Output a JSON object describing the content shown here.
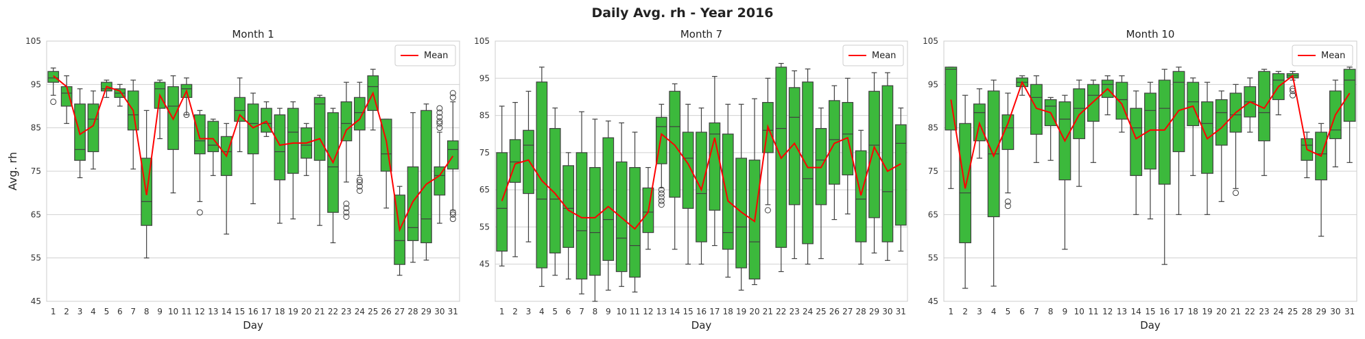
{
  "figure": {
    "title": "Daily Avg. rh - Year 2016"
  },
  "chart_data": [
    {
      "type": "box",
      "title": "Month 1",
      "xlabel": "Day",
      "ylabel": "Avg. rh",
      "ylim": [
        45,
        105
      ],
      "yticks": [
        45,
        55,
        65,
        75,
        85,
        95,
        105
      ],
      "legend": {
        "label": "Mean",
        "placement": "top-right"
      },
      "grid": true,
      "box_color": "#3cb93c",
      "mean_color": "#ff0000",
      "categories": [
        "1",
        "2",
        "3",
        "4",
        "5",
        "6",
        "7",
        "8",
        "9",
        "10",
        "11",
        "12",
        "13",
        "14",
        "15",
        "16",
        "17",
        "18",
        "19",
        "20",
        "21",
        "22",
        "23",
        "24",
        "25",
        "26",
        "27",
        "28",
        "29",
        "30",
        "31"
      ],
      "boxes": [
        {
          "min": 92.5,
          "q1": 95.5,
          "median": 96.5,
          "q3": 98,
          "max": 98.8,
          "outliers": [
            91
          ]
        },
        {
          "min": 86,
          "q1": 90,
          "median": 93,
          "q3": 94.5,
          "max": 97,
          "outliers": []
        },
        {
          "min": 73.5,
          "q1": 77.5,
          "median": 80,
          "q3": 90.5,
          "max": 94,
          "outliers": []
        },
        {
          "min": 75.5,
          "q1": 79.5,
          "median": 87,
          "q3": 90.5,
          "max": 93.5,
          "outliers": []
        },
        {
          "min": 92,
          "q1": 93.5,
          "median": 94,
          "q3": 95.5,
          "max": 96,
          "outliers": []
        },
        {
          "min": 90,
          "q1": 92,
          "median": 93,
          "q3": 94,
          "max": 95,
          "outliers": []
        },
        {
          "min": 75.5,
          "q1": 84.5,
          "median": 88,
          "q3": 93.5,
          "max": 96,
          "outliers": []
        },
        {
          "min": 55,
          "q1": 62.5,
          "median": 68,
          "q3": 78,
          "max": 89,
          "outliers": []
        },
        {
          "min": 82.5,
          "q1": 89.5,
          "median": 94,
          "q3": 95.5,
          "max": 96,
          "outliers": []
        },
        {
          "min": 70,
          "q1": 80,
          "median": 90,
          "q3": 94.5,
          "max": 97,
          "outliers": []
        },
        {
          "min": 88,
          "q1": 92,
          "median": 94,
          "q3": 95,
          "max": 96.5,
          "outliers": [
            88
          ]
        },
        {
          "min": 68,
          "q1": 79,
          "median": 82,
          "q3": 88,
          "max": 89,
          "outliers": [
            65.5
          ]
        },
        {
          "min": 74,
          "q1": 79.5,
          "median": 81,
          "q3": 86.5,
          "max": 87,
          "outliers": []
        },
        {
          "min": 60.5,
          "q1": 74,
          "median": 79.5,
          "q3": 83,
          "max": 86,
          "outliers": []
        },
        {
          "min": 79.5,
          "q1": 86.5,
          "median": 89,
          "q3": 92,
          "max": 96.5,
          "outliers": []
        },
        {
          "min": 67.5,
          "q1": 79,
          "median": 86,
          "q3": 90.5,
          "max": 93,
          "outliers": []
        },
        {
          "min": 83,
          "q1": 84,
          "median": 86,
          "q3": 89.5,
          "max": 91,
          "outliers": []
        },
        {
          "min": 63,
          "q1": 73,
          "median": 79.5,
          "q3": 88,
          "max": 89.5,
          "outliers": []
        },
        {
          "min": 64,
          "q1": 74.5,
          "median": 84,
          "q3": 89.5,
          "max": 91,
          "outliers": []
        },
        {
          "min": 74,
          "q1": 78,
          "median": 81,
          "q3": 85,
          "max": 86,
          "outliers": []
        },
        {
          "min": 62.5,
          "q1": 77.5,
          "median": 90.5,
          "q3": 92,
          "max": 92.5,
          "outliers": []
        },
        {
          "min": 58.5,
          "q1": 65.5,
          "median": 76,
          "q3": 88.5,
          "max": 89.5,
          "outliers": []
        },
        {
          "min": 72.5,
          "q1": 82,
          "median": 86,
          "q3": 91,
          "max": 95.5,
          "outliers": [
            64.5,
            65.5,
            66.5,
            67.5
          ]
        },
        {
          "min": 74,
          "q1": 84.5,
          "median": 88.5,
          "q3": 92,
          "max": 95.5,
          "outliers": [
            70.5,
            71.5,
            72.5,
            73
          ]
        },
        {
          "min": 84.5,
          "q1": 89,
          "median": 94.5,
          "q3": 97,
          "max": 98.5,
          "outliers": []
        },
        {
          "min": 66.5,
          "q1": 75,
          "median": 79,
          "q3": 87,
          "max": 87,
          "outliers": []
        },
        {
          "min": 51,
          "q1": 53.5,
          "median": 59,
          "q3": 69.5,
          "max": 71.5,
          "outliers": []
        },
        {
          "min": 54,
          "q1": 59,
          "median": 62,
          "q3": 76,
          "max": 88.5,
          "outliers": []
        },
        {
          "min": 54.5,
          "q1": 58.5,
          "median": 64,
          "q3": 89,
          "max": 90.5,
          "outliers": []
        },
        {
          "min": 63,
          "q1": 69.5,
          "median": 74,
          "q3": 76,
          "max": 84,
          "outliers": [
            85,
            86,
            86.5,
            87.5,
            88.5,
            89.5
          ]
        },
        {
          "min": 66,
          "q1": 75.5,
          "median": 80,
          "q3": 82,
          "max": 91,
          "outliers": [
            64,
            65,
            65.5,
            92,
            93
          ]
        }
      ],
      "means": [
        97,
        94.5,
        83.5,
        85.5,
        94.5,
        93.5,
        89,
        69.5,
        92.5,
        87,
        93.5,
        82.5,
        82.5,
        78.5,
        88,
        85,
        86.5,
        81,
        81.5,
        81.5,
        82.5,
        77,
        84.5,
        87,
        93,
        82,
        61.5,
        68,
        72,
        74,
        78.5
      ]
    },
    {
      "type": "box",
      "title": "Month 7",
      "xlabel": "Day",
      "ylabel": "",
      "ylim": [
        35,
        105
      ],
      "yticks": [
        45,
        55,
        65,
        75,
        85,
        95,
        105
      ],
      "legend": {
        "label": "Mean",
        "placement": "top-right"
      },
      "grid": true,
      "box_color": "#3cb93c",
      "mean_color": "#ff0000",
      "categories": [
        "1",
        "2",
        "3",
        "4",
        "5",
        "6",
        "7",
        "8",
        "9",
        "10",
        "11",
        "12",
        "13",
        "14",
        "15",
        "16",
        "17",
        "18",
        "19",
        "20",
        "21",
        "22",
        "23",
        "24",
        "25",
        "26",
        "27",
        "28",
        "29",
        "30",
        "31"
      ],
      "boxes": [
        {
          "min": 44.5,
          "q1": 48.5,
          "median": 60,
          "q3": 75,
          "max": 87.5,
          "outliers": []
        },
        {
          "min": 47,
          "q1": 67,
          "median": 72.5,
          "q3": 78.5,
          "max": 88.5,
          "outliers": []
        },
        {
          "min": 51,
          "q1": 64,
          "median": 77,
          "q3": 81,
          "max": 91.5,
          "outliers": []
        },
        {
          "min": 39,
          "q1": 44,
          "median": 62.5,
          "q3": 94,
          "max": 98,
          "outliers": []
        },
        {
          "min": 42,
          "q1": 48,
          "median": 62.5,
          "q3": 81.5,
          "max": 87,
          "outliers": []
        },
        {
          "min": 41,
          "q1": 49.5,
          "median": 60,
          "q3": 71.5,
          "max": 75,
          "outliers": []
        },
        {
          "min": 37,
          "q1": 41,
          "median": 54,
          "q3": 75,
          "max": 86,
          "outliers": []
        },
        {
          "min": 35,
          "q1": 42,
          "median": 53.5,
          "q3": 71,
          "max": 84,
          "outliers": []
        },
        {
          "min": 38,
          "q1": 46,
          "median": 57,
          "q3": 79,
          "max": 83.5,
          "outliers": []
        },
        {
          "min": 39,
          "q1": 43,
          "median": 52,
          "q3": 72.5,
          "max": 83,
          "outliers": []
        },
        {
          "min": 37.5,
          "q1": 41.5,
          "median": 50,
          "q3": 71,
          "max": 80.5,
          "outliers": []
        },
        {
          "min": 49,
          "q1": 53.5,
          "median": 59,
          "q3": 65.5,
          "max": 71,
          "outliers": []
        },
        {
          "min": 65.5,
          "q1": 72,
          "median": 82,
          "q3": 84.5,
          "max": 88,
          "outliers": [
            61,
            62,
            63,
            64,
            65
          ]
        },
        {
          "min": 49,
          "q1": 63,
          "median": 82,
          "q3": 91.5,
          "max": 93.5,
          "outliers": []
        },
        {
          "min": 45,
          "q1": 60,
          "median": 73.5,
          "q3": 80.5,
          "max": 88,
          "outliers": []
        },
        {
          "min": 45,
          "q1": 51,
          "median": 64,
          "q3": 80.5,
          "max": 87,
          "outliers": []
        },
        {
          "min": 50,
          "q1": 59.5,
          "median": 80,
          "q3": 83,
          "max": 95.5,
          "outliers": []
        },
        {
          "min": 41.5,
          "q1": 49,
          "median": 53.5,
          "q3": 80,
          "max": 88,
          "outliers": []
        },
        {
          "min": 38,
          "q1": 44,
          "median": 55,
          "q3": 73.5,
          "max": 88,
          "outliers": []
        },
        {
          "min": 39.5,
          "q1": 41,
          "median": 51,
          "q3": 73,
          "max": 89.5,
          "outliers": []
        },
        {
          "min": 61,
          "q1": 75,
          "median": 81,
          "q3": 88.5,
          "max": 95,
          "outliers": [
            59.5
          ]
        },
        {
          "min": 43,
          "q1": 49.5,
          "median": 81.5,
          "q3": 98,
          "max": 99,
          "outliers": []
        },
        {
          "min": 46.5,
          "q1": 61,
          "median": 84.5,
          "q3": 92.5,
          "max": 97,
          "outliers": []
        },
        {
          "min": 45,
          "q1": 50.5,
          "median": 68,
          "q3": 94,
          "max": 97.5,
          "outliers": []
        },
        {
          "min": 46.5,
          "q1": 61,
          "median": 73,
          "q3": 81.5,
          "max": 87,
          "outliers": []
        },
        {
          "min": 57,
          "q1": 66.5,
          "median": 78.5,
          "q3": 89,
          "max": 93,
          "outliers": []
        },
        {
          "min": 58.5,
          "q1": 69,
          "median": 80,
          "q3": 88.5,
          "max": 95,
          "outliers": []
        },
        {
          "min": 45,
          "q1": 51,
          "median": 62.5,
          "q3": 75.5,
          "max": 81,
          "outliers": []
        },
        {
          "min": 48,
          "q1": 57.5,
          "median": 77,
          "q3": 91.5,
          "max": 96.5,
          "outliers": []
        },
        {
          "min": 46,
          "q1": 51,
          "median": 64.5,
          "q3": 93,
          "max": 96.5,
          "outliers": []
        },
        {
          "min": 48.5,
          "q1": 55.5,
          "median": 77.5,
          "q3": 82.5,
          "max": 87,
          "outliers": []
        }
      ],
      "means": [
        62,
        72,
        73,
        67.5,
        64,
        59.5,
        57.5,
        57.5,
        60.5,
        57.5,
        54.5,
        59,
        80,
        77,
        72,
        65,
        79,
        62,
        59,
        56.5,
        82,
        73.5,
        77.5,
        71,
        71,
        77.5,
        79,
        63.5,
        76.5,
        70,
        72
      ]
    },
    {
      "type": "box",
      "title": "Month 10",
      "xlabel": "Day",
      "ylabel": "",
      "ylim": [
        45,
        105
      ],
      "yticks": [
        45,
        55,
        65,
        75,
        85,
        95,
        105
      ],
      "legend": {
        "label": "Mean",
        "placement": "top-right"
      },
      "grid": true,
      "box_color": "#3cb93c",
      "mean_color": "#ff0000",
      "categories": [
        "1",
        "2",
        "3",
        "4",
        "5",
        "6",
        "7",
        "8",
        "9",
        "10",
        "11",
        "12",
        "13",
        "14",
        "15",
        "16",
        "17",
        "18",
        "19",
        "20",
        "21",
        "22",
        "23",
        "24",
        "25",
        "28",
        "29",
        "30",
        "31"
      ],
      "boxes": [
        {
          "min": 71,
          "q1": 84.5,
          "median": 98.5,
          "q3": 99,
          "max": 99,
          "outliers": []
        },
        {
          "min": 48,
          "q1": 58.5,
          "median": 70,
          "q3": 86,
          "max": 92.5,
          "outliers": []
        },
        {
          "min": 78,
          "q1": 82,
          "median": 88.5,
          "q3": 90.5,
          "max": 94,
          "outliers": []
        },
        {
          "min": 48.5,
          "q1": 64.5,
          "median": 79,
          "q3": 93.5,
          "max": 96,
          "outliers": []
        },
        {
          "min": 70,
          "q1": 80,
          "median": 85,
          "q3": 88,
          "max": 93,
          "outliers": [
            67,
            68
          ]
        },
        {
          "min": 92.5,
          "q1": 94.5,
          "median": 95.5,
          "q3": 96.5,
          "max": 97,
          "outliers": []
        },
        {
          "min": 77,
          "q1": 83.5,
          "median": 92,
          "q3": 95,
          "max": 97,
          "outliers": []
        },
        {
          "min": 77.5,
          "q1": 85.5,
          "median": 90,
          "q3": 91.5,
          "max": 92,
          "outliers": []
        },
        {
          "min": 57,
          "q1": 73,
          "median": 87,
          "q3": 91,
          "max": 92.5,
          "outliers": []
        },
        {
          "min": 71.5,
          "q1": 82.5,
          "median": 89.5,
          "q3": 94,
          "max": 96,
          "outliers": []
        },
        {
          "min": 77,
          "q1": 86.5,
          "median": 92.5,
          "q3": 95,
          "max": 96,
          "outliers": []
        },
        {
          "min": 88,
          "q1": 92,
          "median": 95,
          "q3": 96,
          "max": 97,
          "outliers": []
        },
        {
          "min": 84,
          "q1": 87,
          "median": 91.5,
          "q3": 95.5,
          "max": 97,
          "outliers": []
        },
        {
          "min": 65,
          "q1": 74,
          "median": 85,
          "q3": 89.5,
          "max": 93.5,
          "outliers": []
        },
        {
          "min": 64,
          "q1": 75.5,
          "median": 89,
          "q3": 93,
          "max": 95.5,
          "outliers": []
        },
        {
          "min": 53.5,
          "q1": 72,
          "median": 89.5,
          "q3": 96,
          "max": 98.5,
          "outliers": []
        },
        {
          "min": 65,
          "q1": 79.5,
          "median": 95.5,
          "q3": 98,
          "max": 99,
          "outliers": []
        },
        {
          "min": 74,
          "q1": 85.5,
          "median": 91,
          "q3": 95.5,
          "max": 96.5,
          "outliers": []
        },
        {
          "min": 65,
          "q1": 74.5,
          "median": 86,
          "q3": 91,
          "max": 95.5,
          "outliers": []
        },
        {
          "min": 68,
          "q1": 81,
          "median": 88.5,
          "q3": 91.5,
          "max": 93.5,
          "outliers": []
        },
        {
          "min": 71,
          "q1": 84,
          "median": 88,
          "q3": 93,
          "max": 95,
          "outliers": [
            70
          ]
        },
        {
          "min": 84,
          "q1": 87.5,
          "median": 91,
          "q3": 94.5,
          "max": 96.5,
          "outliers": []
        },
        {
          "min": 74,
          "q1": 82,
          "median": 88.5,
          "q3": 98,
          "max": 98.5,
          "outliers": []
        },
        {
          "min": 88,
          "q1": 91.5,
          "median": 96,
          "q3": 97.5,
          "max": 98,
          "outliers": []
        },
        {
          "min": 96,
          "q1": 96.5,
          "median": 97,
          "q3": 97.5,
          "max": 98,
          "outliers": [
            92.5,
            93.5,
            94
          ]
        },
        {
          "min": 73.5,
          "q1": 77.5,
          "median": 81,
          "q3": 82.5,
          "max": 84,
          "outliers": []
        },
        {
          "min": 60,
          "q1": 73,
          "median": 79,
          "q3": 84,
          "max": 86,
          "outliers": []
        },
        {
          "min": 76,
          "q1": 82.5,
          "median": 84.5,
          "q3": 93.5,
          "max": 96,
          "outliers": []
        },
        {
          "min": 77,
          "q1": 86.5,
          "median": 96,
          "q3": 98.5,
          "max": 99,
          "outliers": []
        }
      ],
      "means": [
        91.5,
        71,
        86,
        78.5,
        86,
        95.5,
        89.5,
        88.5,
        82,
        88,
        91,
        94,
        90.5,
        82.5,
        84.5,
        84.5,
        89,
        90,
        82.5,
        85,
        88.5,
        91,
        89.5,
        94.5,
        97,
        80,
        78.5,
        88,
        93
      ]
    }
  ]
}
